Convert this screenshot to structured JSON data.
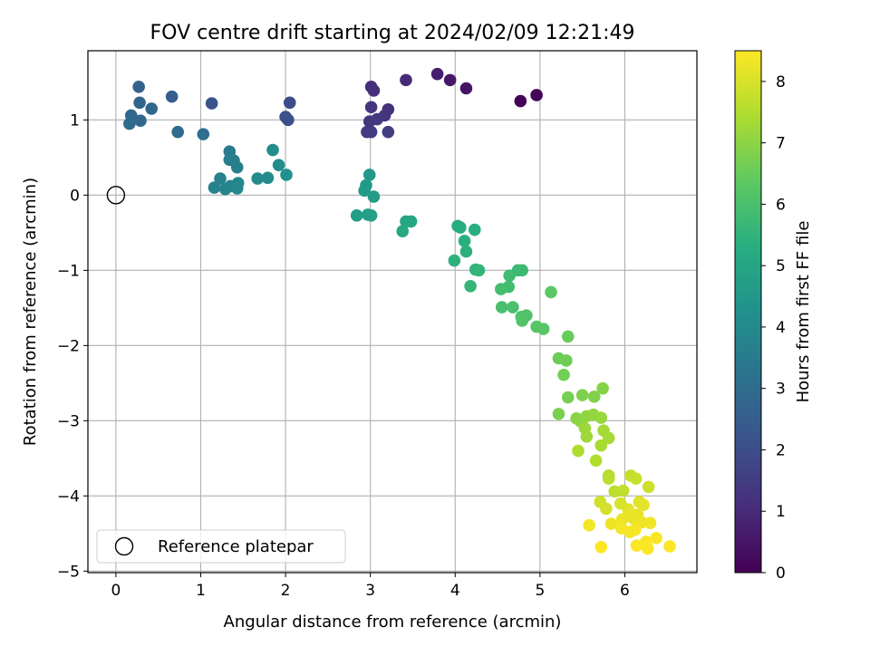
{
  "chart_data": {
    "type": "scatter",
    "title": "FOV centre drift starting at 2024/02/09 12:21:49",
    "xlabel": "Angular distance from reference (arcmin)",
    "ylabel": "Rotation from reference (arcmin)",
    "xlim": [
      -0.33,
      6.85
    ],
    "ylim": [
      -5.02,
      1.92
    ],
    "xticks": [
      "0",
      "1",
      "2",
      "3",
      "4",
      "5",
      "6"
    ],
    "yticks": [
      "1",
      "0",
      "−1",
      "−2",
      "−3",
      "−4",
      "−5"
    ],
    "grid": true,
    "legend": {
      "position": "lower-left",
      "label": "Reference platepar"
    },
    "reference_point": {
      "x": 0,
      "y": 0
    },
    "colorbar": {
      "label": "Hours from first FF file",
      "colormap": "viridis",
      "range": [
        0,
        8.5
      ],
      "ticks": [
        "0",
        "1",
        "2",
        "3",
        "4",
        "5",
        "6",
        "7",
        "8"
      ]
    },
    "points": [
      {
        "x": 4.77,
        "y": 1.25,
        "t": 0.05
      },
      {
        "x": 4.96,
        "y": 1.33,
        "t": 0.1
      },
      {
        "x": 4.13,
        "y": 1.42,
        "t": 0.45
      },
      {
        "x": 3.94,
        "y": 1.53,
        "t": 0.55
      },
      {
        "x": 3.79,
        "y": 1.61,
        "t": 0.7
      },
      {
        "x": 3.42,
        "y": 1.53,
        "t": 1.0
      },
      {
        "x": 3.01,
        "y": 1.44,
        "t": 1.1
      },
      {
        "x": 3.04,
        "y": 1.39,
        "t": 1.15
      },
      {
        "x": 3.21,
        "y": 1.14,
        "t": 1.2
      },
      {
        "x": 3.17,
        "y": 1.06,
        "t": 1.25
      },
      {
        "x": 3.01,
        "y": 1.17,
        "t": 1.3
      },
      {
        "x": 2.99,
        "y": 0.98,
        "t": 1.35
      },
      {
        "x": 3.08,
        "y": 1.01,
        "t": 1.4
      },
      {
        "x": 2.96,
        "y": 0.84,
        "t": 1.45
      },
      {
        "x": 3.01,
        "y": 0.84,
        "t": 1.5
      },
      {
        "x": 3.21,
        "y": 0.84,
        "t": 1.55
      },
      {
        "x": 2.05,
        "y": 1.23,
        "t": 2.0
      },
      {
        "x": 2.0,
        "y": 1.04,
        "t": 2.05
      },
      {
        "x": 2.03,
        "y": 1.0,
        "t": 2.1
      },
      {
        "x": 1.13,
        "y": 1.22,
        "t": 2.2
      },
      {
        "x": 0.66,
        "y": 1.31,
        "t": 2.5
      },
      {
        "x": 0.27,
        "y": 1.44,
        "t": 2.7
      },
      {
        "x": 0.28,
        "y": 1.23,
        "t": 2.75
      },
      {
        "x": 0.42,
        "y": 1.15,
        "t": 2.8
      },
      {
        "x": 0.18,
        "y": 1.06,
        "t": 2.85
      },
      {
        "x": 0.29,
        "y": 0.99,
        "t": 2.9
      },
      {
        "x": 0.16,
        "y": 0.95,
        "t": 2.95
      },
      {
        "x": 0.73,
        "y": 0.84,
        "t": 3.0
      },
      {
        "x": 1.03,
        "y": 0.81,
        "t": 3.05
      },
      {
        "x": 1.34,
        "y": 0.58,
        "t": 3.5
      },
      {
        "x": 1.39,
        "y": 0.46,
        "t": 3.55
      },
      {
        "x": 1.34,
        "y": 0.47,
        "t": 3.6
      },
      {
        "x": 1.43,
        "y": 0.37,
        "t": 3.65
      },
      {
        "x": 1.23,
        "y": 0.22,
        "t": 3.7
      },
      {
        "x": 1.16,
        "y": 0.1,
        "t": 3.75
      },
      {
        "x": 1.29,
        "y": 0.08,
        "t": 3.8
      },
      {
        "x": 1.35,
        "y": 0.12,
        "t": 3.85
      },
      {
        "x": 1.44,
        "y": 0.16,
        "t": 3.9
      },
      {
        "x": 1.43,
        "y": 0.09,
        "t": 3.95
      },
      {
        "x": 1.67,
        "y": 0.22,
        "t": 4.0
      },
      {
        "x": 1.79,
        "y": 0.23,
        "t": 4.05
      },
      {
        "x": 1.85,
        "y": 0.6,
        "t": 4.1
      },
      {
        "x": 1.92,
        "y": 0.4,
        "t": 4.15
      },
      {
        "x": 2.01,
        "y": 0.27,
        "t": 4.2
      },
      {
        "x": 2.99,
        "y": 0.27,
        "t": 4.5
      },
      {
        "x": 2.95,
        "y": 0.13,
        "t": 4.55
      },
      {
        "x": 2.93,
        "y": 0.06,
        "t": 4.6
      },
      {
        "x": 3.04,
        "y": -0.02,
        "t": 4.65
      },
      {
        "x": 2.84,
        "y": -0.27,
        "t": 4.7
      },
      {
        "x": 2.97,
        "y": -0.26,
        "t": 4.75
      },
      {
        "x": 3.01,
        "y": -0.27,
        "t": 4.8
      },
      {
        "x": 3.42,
        "y": -0.35,
        "t": 5.0
      },
      {
        "x": 3.48,
        "y": -0.35,
        "t": 5.05
      },
      {
        "x": 3.38,
        "y": -0.48,
        "t": 5.1
      },
      {
        "x": 4.03,
        "y": -0.41,
        "t": 5.2
      },
      {
        "x": 4.06,
        "y": -0.43,
        "t": 5.25
      },
      {
        "x": 4.23,
        "y": -0.46,
        "t": 5.3
      },
      {
        "x": 4.11,
        "y": -0.61,
        "t": 5.35
      },
      {
        "x": 4.13,
        "y": -0.75,
        "t": 5.4
      },
      {
        "x": 3.99,
        "y": -0.87,
        "t": 5.45
      },
      {
        "x": 4.24,
        "y": -0.99,
        "t": 5.5
      },
      {
        "x": 4.28,
        "y": -1.0,
        "t": 5.55
      },
      {
        "x": 4.18,
        "y": -1.21,
        "t": 5.6
      },
      {
        "x": 4.74,
        "y": -1.0,
        "t": 5.7
      },
      {
        "x": 4.79,
        "y": -1.0,
        "t": 5.75
      },
      {
        "x": 4.64,
        "y": -1.07,
        "t": 5.8
      },
      {
        "x": 4.63,
        "y": -1.22,
        "t": 5.85
      },
      {
        "x": 4.54,
        "y": -1.25,
        "t": 5.9
      },
      {
        "x": 4.55,
        "y": -1.49,
        "t": 5.95
      },
      {
        "x": 4.68,
        "y": -1.49,
        "t": 6.0
      },
      {
        "x": 4.84,
        "y": -1.6,
        "t": 6.05
      },
      {
        "x": 4.78,
        "y": -1.62,
        "t": 6.1
      },
      {
        "x": 4.79,
        "y": -1.67,
        "t": 6.15
      },
      {
        "x": 4.96,
        "y": -1.75,
        "t": 6.2
      },
      {
        "x": 5.04,
        "y": -1.78,
        "t": 6.25
      },
      {
        "x": 5.13,
        "y": -1.29,
        "t": 6.3
      },
      {
        "x": 5.33,
        "y": -1.88,
        "t": 6.5
      },
      {
        "x": 5.22,
        "y": -2.17,
        "t": 6.55
      },
      {
        "x": 5.31,
        "y": -2.2,
        "t": 6.6
      },
      {
        "x": 5.28,
        "y": -2.39,
        "t": 6.65
      },
      {
        "x": 5.33,
        "y": -2.69,
        "t": 6.7
      },
      {
        "x": 5.22,
        "y": -2.91,
        "t": 6.75
      },
      {
        "x": 5.5,
        "y": -2.66,
        "t": 6.8
      },
      {
        "x": 5.64,
        "y": -2.68,
        "t": 6.85
      },
      {
        "x": 5.74,
        "y": -2.57,
        "t": 6.9
      },
      {
        "x": 5.43,
        "y": -2.97,
        "t": 6.95
      },
      {
        "x": 5.48,
        "y": -3.01,
        "t": 7.0
      },
      {
        "x": 5.55,
        "y": -2.94,
        "t": 7.05
      },
      {
        "x": 5.63,
        "y": -2.92,
        "t": 7.1
      },
      {
        "x": 5.72,
        "y": -2.96,
        "t": 7.15
      },
      {
        "x": 5.53,
        "y": -3.1,
        "t": 7.2
      },
      {
        "x": 5.55,
        "y": -3.21,
        "t": 7.25
      },
      {
        "x": 5.75,
        "y": -3.13,
        "t": 7.3
      },
      {
        "x": 5.81,
        "y": -3.23,
        "t": 7.35
      },
      {
        "x": 5.72,
        "y": -3.33,
        "t": 7.4
      },
      {
        "x": 5.45,
        "y": -3.4,
        "t": 7.45
      },
      {
        "x": 5.66,
        "y": -3.53,
        "t": 7.5
      },
      {
        "x": 5.81,
        "y": -3.73,
        "t": 7.55
      },
      {
        "x": 5.81,
        "y": -3.77,
        "t": 7.6
      },
      {
        "x": 5.88,
        "y": -3.94,
        "t": 7.65
      },
      {
        "x": 5.98,
        "y": -3.93,
        "t": 7.7
      },
      {
        "x": 6.07,
        "y": -3.73,
        "t": 7.75
      },
      {
        "x": 6.13,
        "y": -3.77,
        "t": 7.8
      },
      {
        "x": 6.28,
        "y": -3.88,
        "t": 7.85
      },
      {
        "x": 5.71,
        "y": -4.08,
        "t": 7.9
      },
      {
        "x": 5.78,
        "y": -4.17,
        "t": 7.95
      },
      {
        "x": 5.95,
        "y": -4.1,
        "t": 8.0
      },
      {
        "x": 6.04,
        "y": -4.18,
        "t": 8.05
      },
      {
        "x": 6.17,
        "y": -4.08,
        "t": 8.1
      },
      {
        "x": 6.22,
        "y": -4.12,
        "t": 8.15
      },
      {
        "x": 6.05,
        "y": -4.22,
        "t": 8.2
      },
      {
        "x": 6.1,
        "y": -4.3,
        "t": 8.22
      },
      {
        "x": 6.15,
        "y": -4.25,
        "t": 8.25
      },
      {
        "x": 5.97,
        "y": -4.31,
        "t": 8.28
      },
      {
        "x": 5.84,
        "y": -4.37,
        "t": 8.3
      },
      {
        "x": 6.2,
        "y": -4.35,
        "t": 8.32
      },
      {
        "x": 6.3,
        "y": -4.36,
        "t": 8.35
      },
      {
        "x": 5.58,
        "y": -4.39,
        "t": 8.37
      },
      {
        "x": 5.96,
        "y": -4.43,
        "t": 8.39
      },
      {
        "x": 6.06,
        "y": -4.48,
        "t": 8.4
      },
      {
        "x": 6.12,
        "y": -4.45,
        "t": 8.42
      },
      {
        "x": 6.37,
        "y": -4.56,
        "t": 8.44
      },
      {
        "x": 6.25,
        "y": -4.61,
        "t": 8.45
      },
      {
        "x": 6.14,
        "y": -4.66,
        "t": 8.46
      },
      {
        "x": 6.27,
        "y": -4.7,
        "t": 8.47
      },
      {
        "x": 6.53,
        "y": -4.67,
        "t": 8.48
      },
      {
        "x": 5.72,
        "y": -4.68,
        "t": 8.5
      }
    ]
  }
}
